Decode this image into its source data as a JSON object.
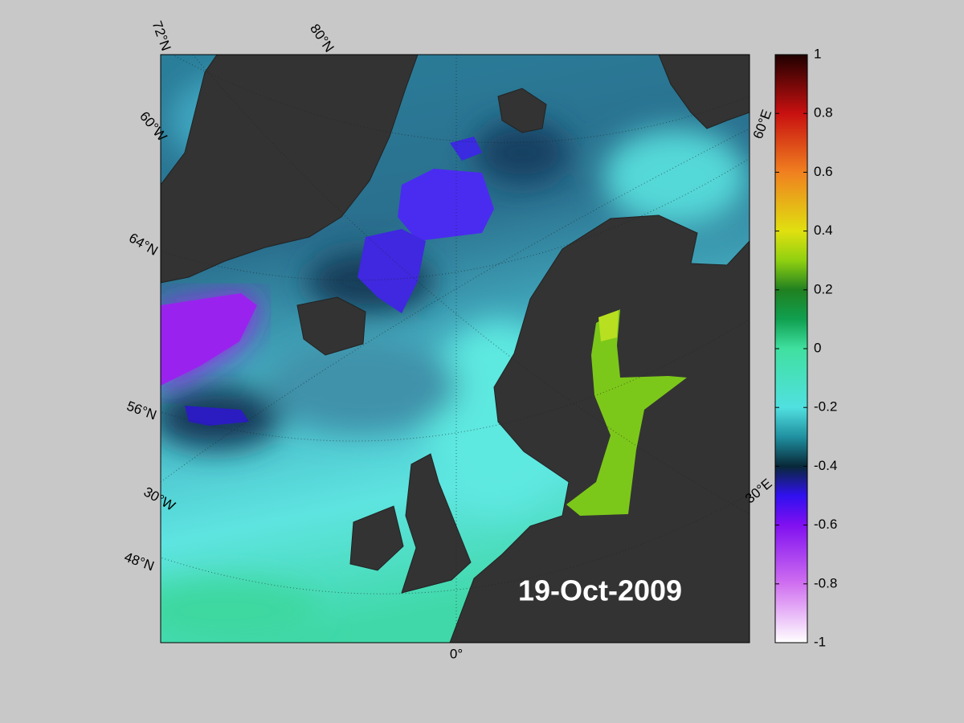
{
  "map": {
    "date": "19-Oct-2009",
    "labels": [
      "72°N",
      "80°N",
      "60°W",
      "64°N",
      "56°N",
      "30°W",
      "48°N",
      "0°",
      "60°E",
      "30°E"
    ]
  },
  "colorbar": {
    "lim": [
      -1,
      1
    ],
    "ticks": [
      1,
      0.8,
      0.6,
      0.4,
      0.2,
      0,
      -0.2,
      -0.4,
      -0.6,
      -0.8,
      -1
    ]
  }
}
